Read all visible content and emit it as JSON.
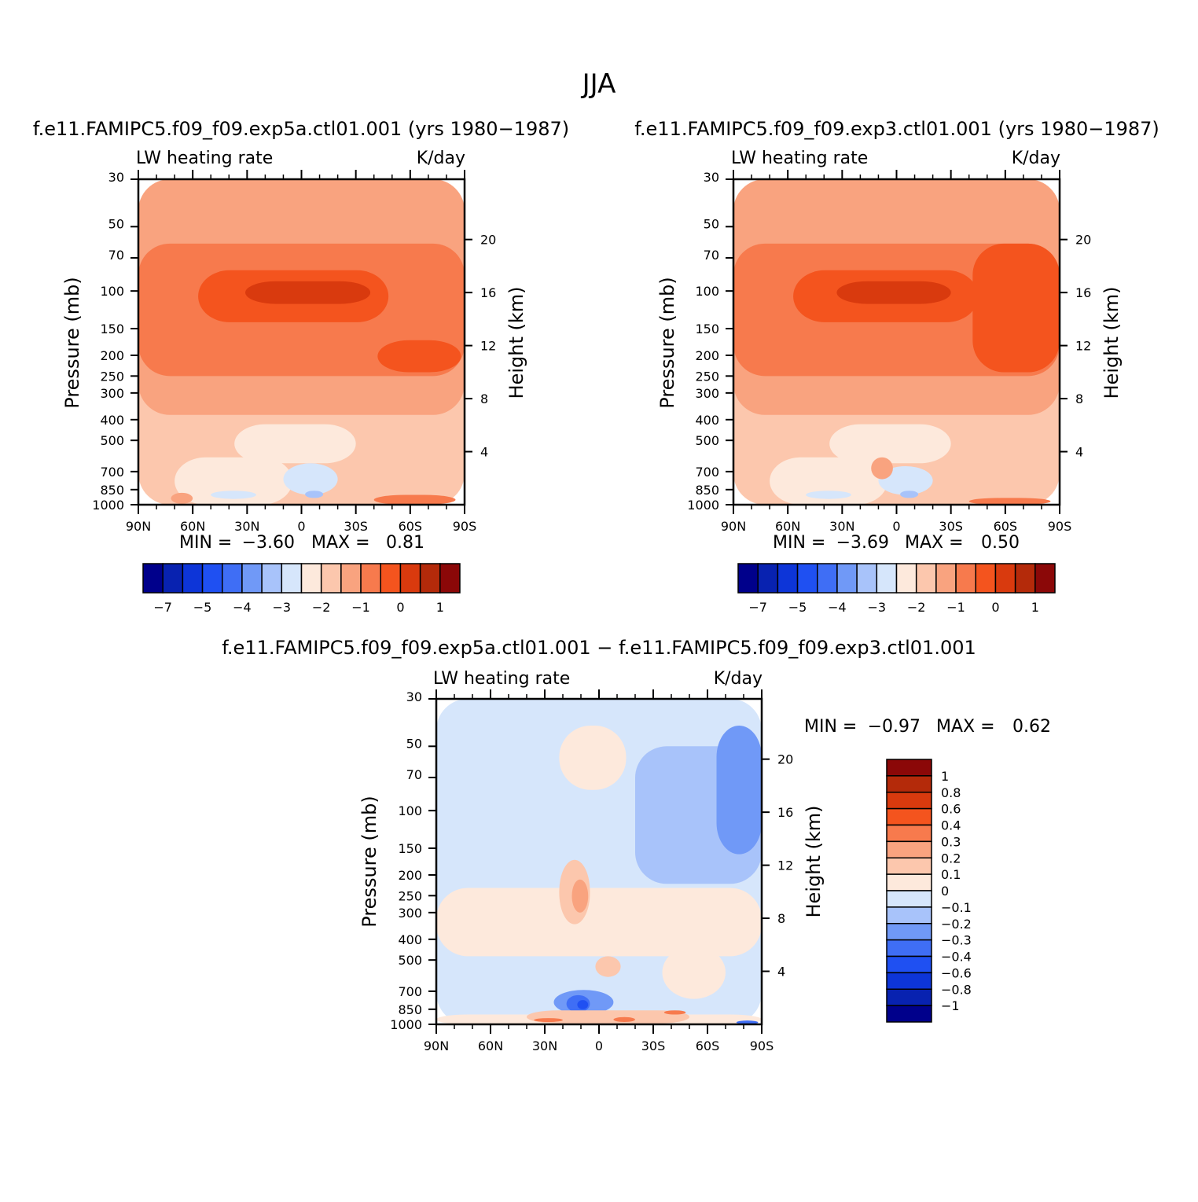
{
  "title": "JJA",
  "colors": {
    "palette": [
      "#00008b",
      "#0822b0",
      "#0d35d8",
      "#1f50f2",
      "#3f6ef5",
      "#7099f7",
      "#a8c3fa",
      "#d6e6fb",
      "#fde9dc",
      "#fcc7ad",
      "#f9a37f",
      "#f77a4d",
      "#f4541e",
      "#d93a0e",
      "#b42a0a",
      "#8b0808"
    ]
  },
  "chart_data": [
    {
      "type": "heatmap",
      "title": "f.e11.FAMIPC5.f09_f09.exp5a.ctl01.001 (yrs 1980−1987)",
      "left_label": "LW heating rate",
      "right_label": "K/day",
      "xlabel": "",
      "ylabel": "Pressure (mb)",
      "y2label": "Height (km)",
      "x_ticks": [
        "90N",
        "60N",
        "30N",
        "0",
        "30S",
        "60S",
        "90S"
      ],
      "y_ticks": [
        "30",
        "50",
        "70",
        "100",
        "150",
        "200",
        "250",
        "300",
        "400",
        "500",
        "700",
        "850",
        "1000"
      ],
      "y2_ticks": [
        "20",
        "16",
        "12",
        "8",
        "4"
      ],
      "stats": {
        "min_label": "MIN =",
        "min": "−3.60",
        "max_label": "MAX =",
        "max": "0.81"
      },
      "colorbar": {
        "orientation": "horizontal",
        "labels": [
          "−7",
          "−5",
          "−4",
          "−3",
          "−2",
          "−1",
          "0",
          "1"
        ]
      },
      "fields": [
        {
          "level": 9,
          "lat_min": -90,
          "lat_max": 90,
          "p_top": 30,
          "p_bot": 1000
        },
        {
          "level": 10,
          "lat_min": -90,
          "lat_max": 90,
          "p_top": 30,
          "p_bot": 380
        },
        {
          "level": 11,
          "lat_min": -90,
          "lat_max": 90,
          "p_top": 60,
          "p_bot": 250
        },
        {
          "level": 12,
          "lat_min": -48,
          "lat_max": 57,
          "p_top": 80,
          "p_bot": 140
        },
        {
          "level": 13,
          "lat_min": -38,
          "lat_max": 31,
          "p_top": 90,
          "p_bot": 115
        },
        {
          "level": 12,
          "lat_min": -88,
          "lat_max": -42,
          "p_top": 170,
          "p_bot": 240
        },
        {
          "level": 8,
          "lat_min": -30,
          "lat_max": 37,
          "p_top": 420,
          "p_bot": 640
        },
        {
          "level": 8,
          "lat_min": 5,
          "lat_max": 70,
          "p_top": 600,
          "p_bot": 1000
        },
        {
          "level": 7,
          "lat_min": -20,
          "lat_max": 10,
          "p_top": 640,
          "p_bot": 900
        },
        {
          "level": 6,
          "lat_min": -12,
          "lat_max": -2,
          "p_top": 860,
          "p_bot": 930
        },
        {
          "level": 7,
          "lat_min": 25,
          "lat_max": 50,
          "p_top": 860,
          "p_bot": 940
        },
        {
          "level": 11,
          "lat_min": -85,
          "lat_max": -40,
          "p_top": 900,
          "p_bot": 1000
        },
        {
          "level": 10,
          "lat_min": 60,
          "lat_max": 72,
          "p_top": 880,
          "p_bot": 990
        }
      ]
    },
    {
      "type": "heatmap",
      "title": "f.e11.FAMIPC5.f09_f09.exp3.ctl01.001 (yrs 1980−1987)",
      "left_label": "LW heating rate",
      "right_label": "K/day",
      "xlabel": "",
      "ylabel": "Pressure (mb)",
      "y2label": "Height (km)",
      "x_ticks": [
        "90N",
        "60N",
        "30N",
        "0",
        "30S",
        "60S",
        "90S"
      ],
      "y_ticks": [
        "30",
        "50",
        "70",
        "100",
        "150",
        "200",
        "250",
        "300",
        "400",
        "500",
        "700",
        "850",
        "1000"
      ],
      "y2_ticks": [
        "20",
        "16",
        "12",
        "8",
        "4"
      ],
      "stats": {
        "min_label": "MIN =",
        "min": "−3.69",
        "max_label": "MAX =",
        "max": "0.50"
      },
      "colorbar": {
        "orientation": "horizontal",
        "labels": [
          "−7",
          "−5",
          "−4",
          "−3",
          "−2",
          "−1",
          "0",
          "1"
        ]
      },
      "fields": [
        {
          "level": 9,
          "lat_min": -90,
          "lat_max": 90,
          "p_top": 30,
          "p_bot": 1000
        },
        {
          "level": 10,
          "lat_min": -90,
          "lat_max": 90,
          "p_top": 30,
          "p_bot": 380
        },
        {
          "level": 11,
          "lat_min": -90,
          "lat_max": 90,
          "p_top": 60,
          "p_bot": 250
        },
        {
          "level": 12,
          "lat_min": -45,
          "lat_max": 57,
          "p_top": 80,
          "p_bot": 140
        },
        {
          "level": 13,
          "lat_min": -30,
          "lat_max": 33,
          "p_top": 90,
          "p_bot": 115
        },
        {
          "level": 12,
          "lat_min": -90,
          "lat_max": -42,
          "p_top": 60,
          "p_bot": 240
        },
        {
          "level": 8,
          "lat_min": -30,
          "lat_max": 37,
          "p_top": 420,
          "p_bot": 640
        },
        {
          "level": 8,
          "lat_min": 5,
          "lat_max": 70,
          "p_top": 600,
          "p_bot": 1000
        },
        {
          "level": 7,
          "lat_min": -20,
          "lat_max": 10,
          "p_top": 660,
          "p_bot": 900
        },
        {
          "level": 6,
          "lat_min": -12,
          "lat_max": -2,
          "p_top": 860,
          "p_bot": 930
        },
        {
          "level": 7,
          "lat_min": 25,
          "lat_max": 50,
          "p_top": 860,
          "p_bot": 940
        },
        {
          "level": 10,
          "lat_min": 2,
          "lat_max": 14,
          "p_top": 600,
          "p_bot": 760
        },
        {
          "level": 11,
          "lat_min": -85,
          "lat_max": -40,
          "p_top": 930,
          "p_bot": 1000
        }
      ]
    },
    {
      "type": "heatmap",
      "title": "f.e11.FAMIPC5.f09_f09.exp5a.ctl01.001 − f.e11.FAMIPC5.f09_f09.exp3.ctl01.001",
      "left_label": "LW heating rate",
      "right_label": "K/day",
      "xlabel": "",
      "ylabel": "Pressure (mb)",
      "y2label": "Height (km)",
      "x_ticks": [
        "90N",
        "60N",
        "30N",
        "0",
        "30S",
        "60S",
        "90S"
      ],
      "y_ticks": [
        "30",
        "50",
        "70",
        "100",
        "150",
        "200",
        "250",
        "300",
        "400",
        "500",
        "700",
        "850",
        "1000"
      ],
      "y2_ticks": [
        "20",
        "16",
        "12",
        "8",
        "4"
      ],
      "stats": {
        "min_label": "MIN =",
        "min": "−0.97",
        "max_label": "MAX =",
        "max": "0.62"
      },
      "colorbar": {
        "orientation": "vertical",
        "labels": [
          "1",
          "0.8",
          "0.6",
          "0.4",
          "0.3",
          "0.2",
          "0.1",
          "0",
          "−0.1",
          "−0.2",
          "−0.3",
          "−0.4",
          "−0.6",
          "−0.8",
          "−1"
        ]
      },
      "fields": [
        {
          "level": 7,
          "lat_min": -90,
          "lat_max": 90,
          "p_top": 30,
          "p_bot": 1000
        },
        {
          "level": 8,
          "lat_min": -90,
          "lat_max": 90,
          "p_top": 230,
          "p_bot": 480
        },
        {
          "level": 8,
          "lat_min": -15,
          "lat_max": 22,
          "p_top": 40,
          "p_bot": 80
        },
        {
          "level": 6,
          "lat_min": -90,
          "lat_max": -20,
          "p_top": 50,
          "p_bot": 220
        },
        {
          "level": 5,
          "lat_min": -90,
          "lat_max": -65,
          "p_top": 40,
          "p_bot": 160
        },
        {
          "level": 9,
          "lat_min": 5,
          "lat_max": 22,
          "p_top": 170,
          "p_bot": 340
        },
        {
          "level": 10,
          "lat_min": 6,
          "lat_max": 15,
          "p_top": 210,
          "p_bot": 300
        },
        {
          "level": 8,
          "lat_min": -70,
          "lat_max": -35,
          "p_top": 430,
          "p_bot": 760
        },
        {
          "level": 9,
          "lat_min": -12,
          "lat_max": 2,
          "p_top": 480,
          "p_bot": 600
        },
        {
          "level": 5,
          "lat_min": -8,
          "lat_max": 25,
          "p_top": 690,
          "p_bot": 900
        },
        {
          "level": 4,
          "lat_min": 5,
          "lat_max": 18,
          "p_top": 730,
          "p_bot": 880
        },
        {
          "level": 3,
          "lat_min": 6,
          "lat_max": 12,
          "p_top": 770,
          "p_bot": 850
        },
        {
          "level": 8,
          "lat_min": -90,
          "lat_max": 90,
          "p_top": 900,
          "p_bot": 1000
        },
        {
          "level": 9,
          "lat_min": -50,
          "lat_max": 40,
          "p_top": 860,
          "p_bot": 990
        },
        {
          "level": 11,
          "lat_min": 20,
          "lat_max": 36,
          "p_top": 935,
          "p_bot": 975
        },
        {
          "level": 11,
          "lat_min": -20,
          "lat_max": -8,
          "p_top": 925,
          "p_bot": 975
        },
        {
          "level": 11,
          "lat_min": -48,
          "lat_max": -36,
          "p_top": 860,
          "p_bot": 900
        },
        {
          "level": 4,
          "lat_min": -88,
          "lat_max": -76,
          "p_top": 960,
          "p_bot": 1000
        }
      ]
    }
  ]
}
